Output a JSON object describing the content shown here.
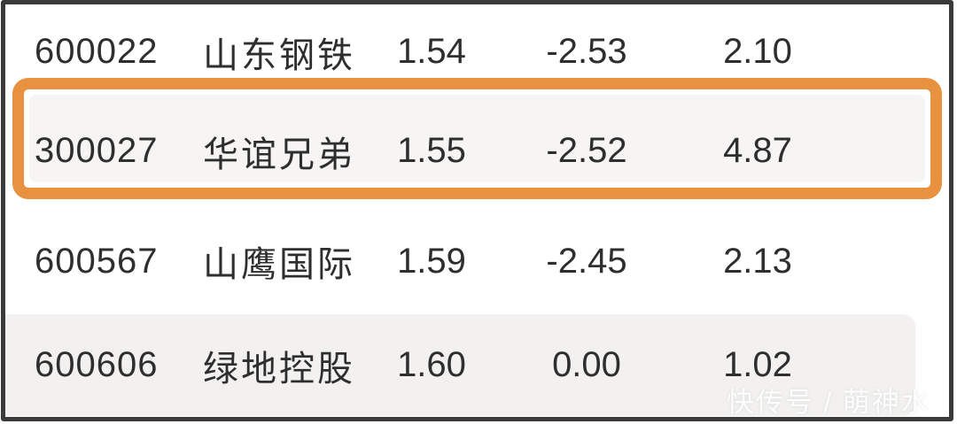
{
  "table": {
    "rows": [
      {
        "code": "600022",
        "name": "山东钢铁",
        "price": "1.54",
        "change": "-2.53",
        "value": "2.10",
        "highlighted": false
      },
      {
        "code": "300027",
        "name": "华谊兄弟",
        "price": "1.55",
        "change": "-2.52",
        "value": "4.87",
        "highlighted": true
      },
      {
        "code": "600567",
        "name": "山鹰国际",
        "price": "1.59",
        "change": "-2.45",
        "value": "2.13",
        "highlighted": false
      },
      {
        "code": "600606",
        "name": "绿地控股",
        "price": "1.60",
        "change": "0.00",
        "value": "1.02",
        "highlighted": false
      }
    ]
  },
  "watermark": {
    "text": "快传号 / 萌神水"
  },
  "colors": {
    "highlight_border": "#E8913F",
    "frame_border": "#3a3a3a",
    "zebra_row_bg": "#f2f1ef",
    "highlight_row_bg": "#f6f5f3",
    "text": "#2e2e2e"
  }
}
